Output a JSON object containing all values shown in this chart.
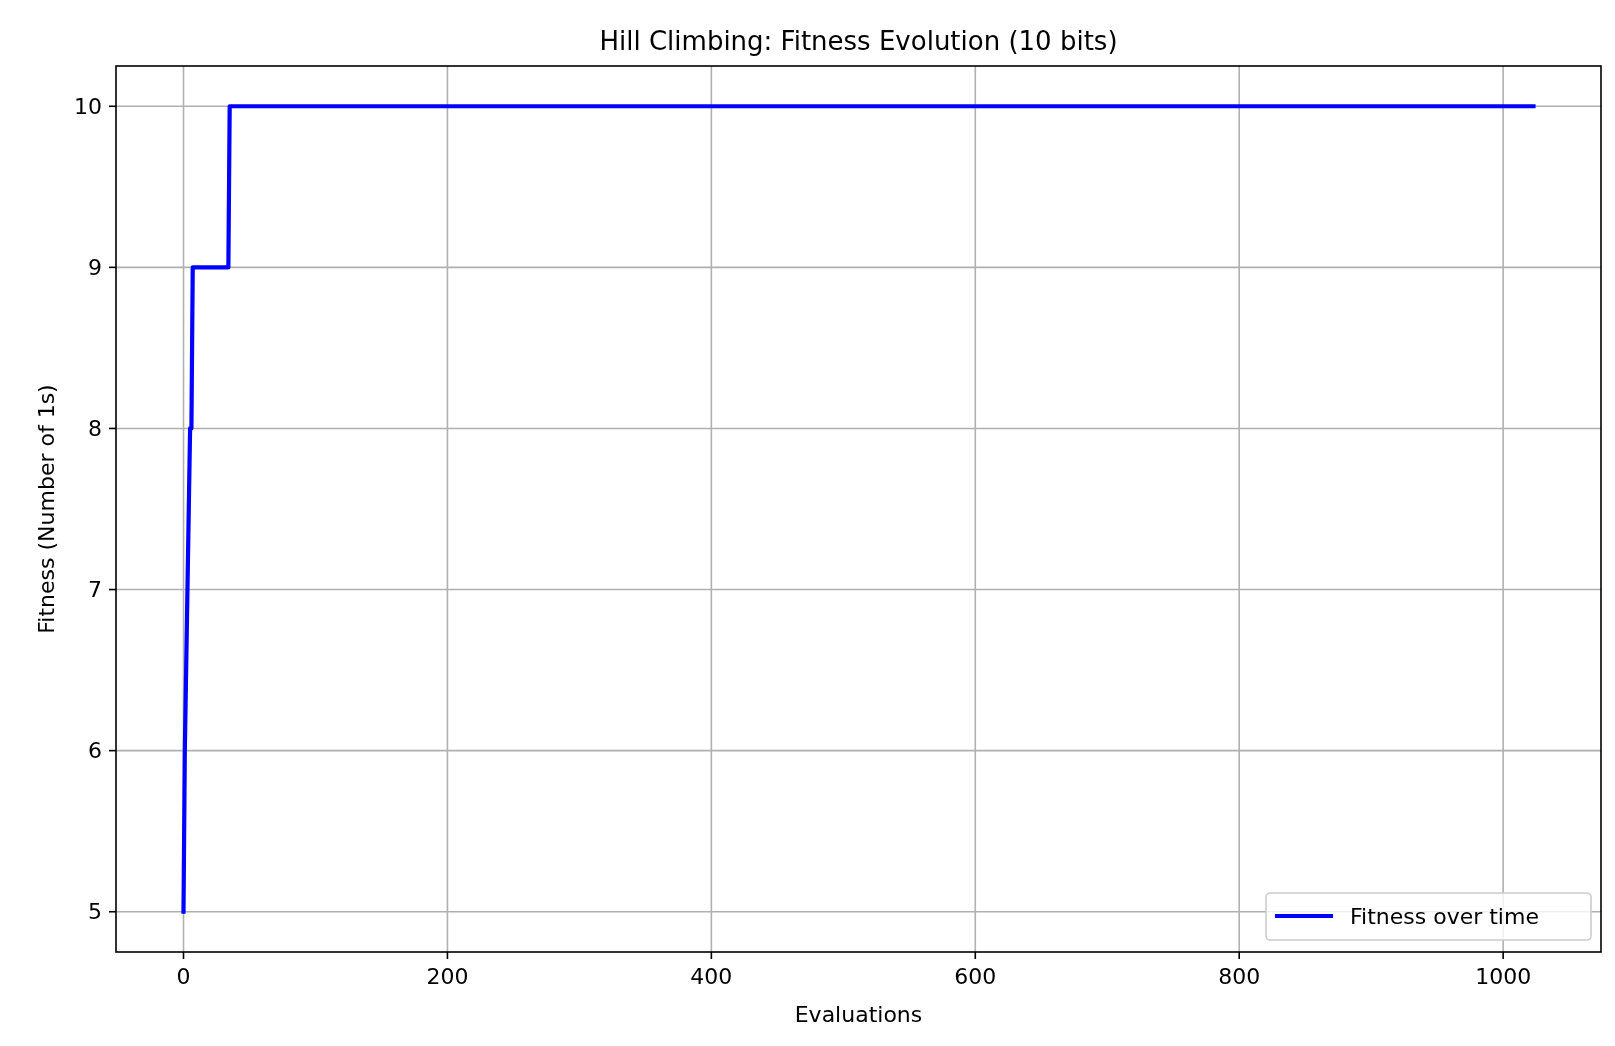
{
  "chart_data": {
    "type": "line",
    "title": "Hill Climbing: Fitness Evolution (10 bits)",
    "xlabel": "Evaluations",
    "ylabel": "Fitness (Number of 1s)",
    "x": [
      0,
      1,
      3,
      5,
      6,
      7,
      34,
      35,
      1023
    ],
    "series": [
      {
        "name": "Fitness over time",
        "color": "#0000ff",
        "values": [
          5,
          6,
          7,
          8,
          8,
          9,
          9,
          10,
          10
        ]
      }
    ],
    "xlim": [
      -51.15,
      1074.15
    ],
    "ylim": [
      4.75,
      10.25
    ],
    "xticks": [
      0,
      200,
      400,
      600,
      800,
      1000
    ],
    "yticks": [
      5,
      6,
      7,
      8,
      9,
      10
    ],
    "grid": true,
    "legend": "bottom right",
    "line_style": "solid"
  }
}
